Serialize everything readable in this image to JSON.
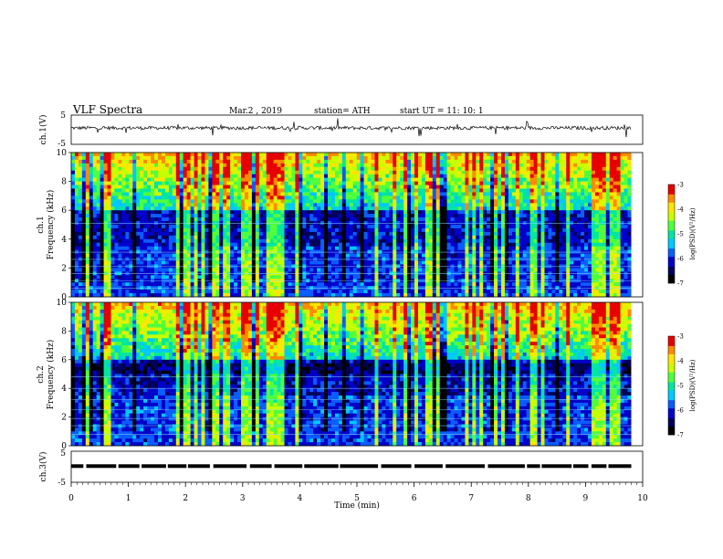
{
  "header": {
    "title": "VLF  Spectra",
    "date": "Mar.2  , 2019",
    "station": "station= ATH",
    "start": "start  UT  =    11: 10: 1"
  },
  "colors": {
    "trace": "#000000",
    "cmap": [
      "#000000",
      "#00005a",
      "#0000c8",
      "#0a5cff",
      "#00c8ff",
      "#00e6a0",
      "#50ff3c",
      "#c8ff00",
      "#ffe600",
      "#ff8a00",
      "#e60000",
      "#ffffff"
    ]
  },
  "chart_data": [
    {
      "id": "ch1-waveform",
      "type": "line",
      "ylabel": "ch.1(V)",
      "ylim": [
        -5,
        5
      ],
      "yticks": [
        "5",
        "-5"
      ],
      "x_range_min": [
        0,
        9.8
      ],
      "baseline_V": 0.6,
      "noise_amp_V": 1.2
    },
    {
      "id": "ch1-spectrogram",
      "type": "heatmap",
      "ylabel": "ch.1\nFrequency  (kHz)",
      "xlim": [
        0,
        10
      ],
      "ylim": [
        0,
        10
      ],
      "yticks": [
        "0",
        "2",
        "4",
        "6",
        "8",
        "10"
      ],
      "colorbar": {
        "label": "log(PSD)(V²/Hz)",
        "range": [
          -7,
          -3
        ],
        "ticks": [
          "-3",
          "-4",
          "-5",
          "-6",
          "-7"
        ]
      }
    },
    {
      "id": "ch2-spectrogram",
      "type": "heatmap",
      "ylabel": "ch.2\nFrequency  (kHz)",
      "xlim": [
        0,
        10
      ],
      "ylim": [
        0,
        10
      ],
      "yticks": [
        "0",
        "2",
        "4",
        "6",
        "8",
        "10"
      ],
      "colorbar": {
        "label": "log(PSD)(V²/Hz)",
        "range": [
          -7,
          -3
        ],
        "ticks": [
          "-3",
          "-4",
          "-5",
          "-6",
          "-7"
        ]
      }
    },
    {
      "id": "ch3-waveform",
      "type": "line",
      "ylabel": "ch.3(V)",
      "ylim": [
        -5,
        5
      ],
      "yticks": [
        "5",
        "-5"
      ],
      "x_range_min": [
        0,
        9.8
      ],
      "baseline_V": 0.2,
      "xlabel": "Time  (min)",
      "xlim": [
        0,
        10
      ],
      "xticks": [
        "0",
        "1",
        "2",
        "3",
        "4",
        "5",
        "6",
        "7",
        "8",
        "9",
        "10"
      ]
    }
  ]
}
